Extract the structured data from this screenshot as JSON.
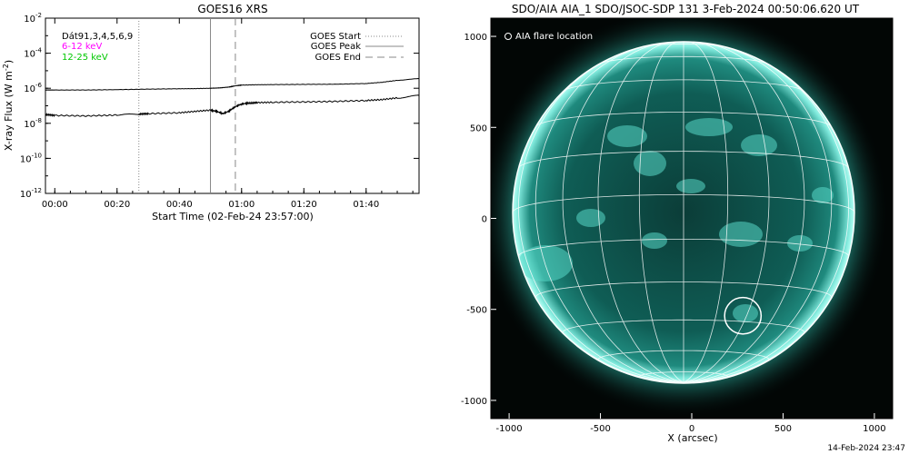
{
  "chart_data": [
    {
      "type": "line",
      "title": "GOES16 XRS",
      "xlabel": "Start Time (02-Feb-24 23:57:00)",
      "ylabel": "X-ray Flux (W m^-2)",
      "ylog": true,
      "ylim": [
        1e-12,
        0.01
      ],
      "xlim_minutes": [
        -3,
        117
      ],
      "x_tick_labels": [
        "00:00",
        "00:20",
        "00:40",
        "01:00",
        "01:20",
        "01:40"
      ],
      "x_tick_minutes": [
        0,
        20,
        40,
        60,
        80,
        100
      ],
      "y_tick_exponents": [
        -2,
        -4,
        -6,
        -8,
        -10,
        -12
      ],
      "annotations": [
        "Dát91,3,4,5,6,9",
        "6-12 keV",
        "12-25 keV"
      ],
      "annotation_colors": [
        "#000000",
        "#ff00ff",
        "#00c800"
      ],
      "legend": {
        "position": "top-right",
        "entries": [
          {
            "label": "GOES Start",
            "style": "dotted"
          },
          {
            "label": "GOES Peak",
            "style": "solid"
          },
          {
            "label": "GOES End",
            "style": "dashed"
          }
        ]
      },
      "event_lines_minutes": {
        "start": 27,
        "peak": 50,
        "end": 58
      },
      "series": [
        {
          "color": "#000000",
          "x_minutes": [
            -3,
            0,
            10,
            20,
            30,
            40,
            45,
            50,
            53,
            56,
            58,
            60,
            65,
            70,
            80,
            90,
            100,
            105,
            110,
            117
          ],
          "y_exp": [
            -6.1,
            -6.1,
            -6.1,
            -6.08,
            -6.05,
            -6.03,
            -6.02,
            -6.0,
            -5.98,
            -5.93,
            -5.86,
            -5.82,
            -5.8,
            -5.79,
            -5.78,
            -5.77,
            -5.73,
            -5.66,
            -5.55,
            -5.45
          ]
        },
        {
          "color": "#000000",
          "x_minutes": [
            -3,
            0,
            10,
            20,
            27,
            30,
            40,
            45,
            50,
            52,
            54,
            56,
            58,
            60,
            62,
            65,
            70,
            80,
            90,
            100,
            105,
            110,
            117
          ],
          "y_exp": [
            -7.5,
            -7.55,
            -7.58,
            -7.53,
            -7.48,
            -7.45,
            -7.4,
            -7.32,
            -7.25,
            -7.32,
            -7.45,
            -7.3,
            -7.05,
            -6.9,
            -6.85,
            -6.82,
            -6.8,
            -6.78,
            -6.75,
            -6.7,
            -6.65,
            -6.55,
            -6.42
          ]
        }
      ]
    },
    {
      "type": "image",
      "title": "SDO/AIA AIA_1 SDO/JSOC-SDP 131  3-Feb-2024 00:50:06.620 UT",
      "xlabel": "X (arcsec)",
      "x_ticks": [
        -1000,
        -500,
        0,
        500,
        1000
      ],
      "y_ticks": [
        1000,
        500,
        0,
        -500,
        -1000
      ],
      "xlim": [
        -1100,
        1100
      ],
      "ylim": [
        -1100,
        1100
      ],
      "legend_text": "AIA flare location",
      "flare_location_arcsec": [
        280,
        -535
      ],
      "flare_circle_radius_arcsec": 100,
      "footer_timestamp": "14-Feb-2024 23:47"
    }
  ]
}
